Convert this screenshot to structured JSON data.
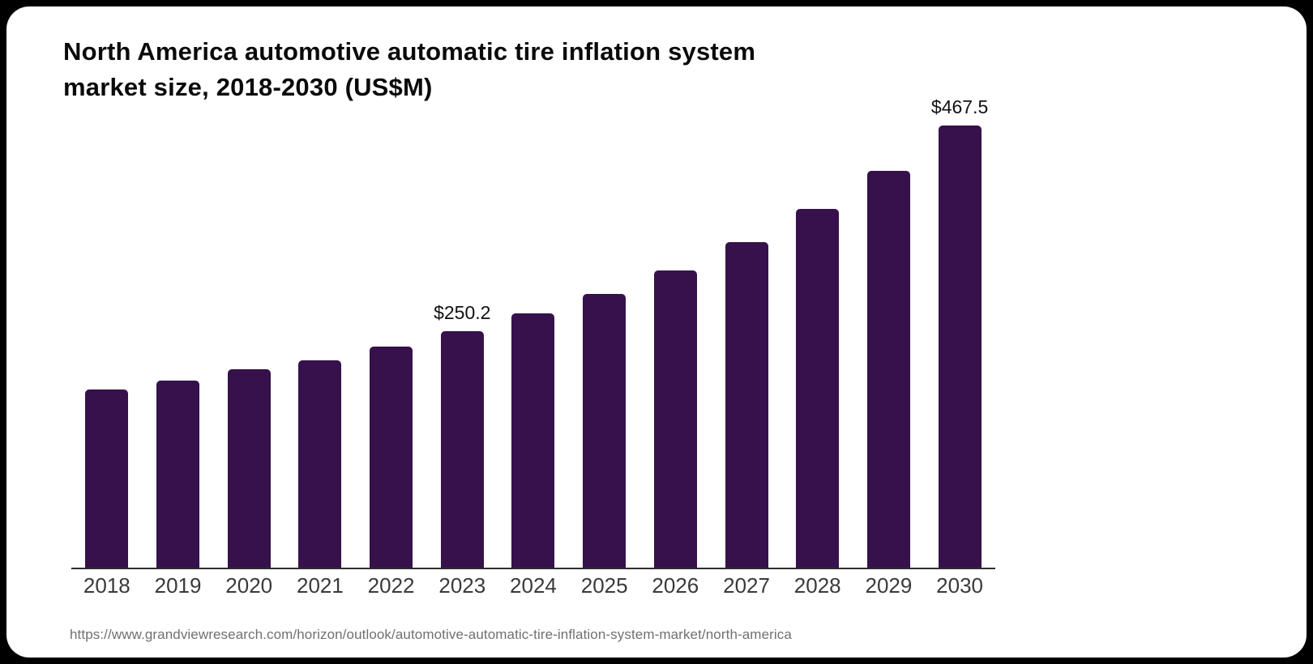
{
  "page": {
    "background_color": "#000000",
    "card_background_color": "#ffffff"
  },
  "header": {
    "title_line1": "North America automotive automatic tire inflation system",
    "title_line2": "market size, 2018-2030 (US$M)"
  },
  "footer": {
    "source_url": "https://www.grandviewresearch.com/horizon/outlook/automotive-automatic-tire-inflation-system-market/north-america"
  },
  "chart_data": {
    "type": "bar",
    "title": "North America automotive automatic tire inflation system market size, 2018-2030 (US$M)",
    "categories": [
      "2018",
      "2019",
      "2020",
      "2021",
      "2022",
      "2023",
      "2024",
      "2025",
      "2026",
      "2027",
      "2028",
      "2029",
      "2030"
    ],
    "values": [
      188.8,
      198.2,
      209.4,
      219.6,
      233.4,
      250.2,
      268.6,
      289.1,
      314.0,
      344.1,
      379.2,
      419.6,
      467.5
    ],
    "value_labels": [
      "",
      "",
      "",
      "",
      "",
      "$250.2",
      "",
      "",
      "",
      "",
      "",
      "",
      "$467.5"
    ],
    "xlabel": "",
    "ylabel": "",
    "ylim": [
      0,
      500
    ],
    "grid": false,
    "legend": false,
    "bar_color": "#36114C",
    "axis_line_color": "#2e2e2e",
    "value_label_color": "#111111",
    "tick_label_color": "#3a3a3a"
  }
}
